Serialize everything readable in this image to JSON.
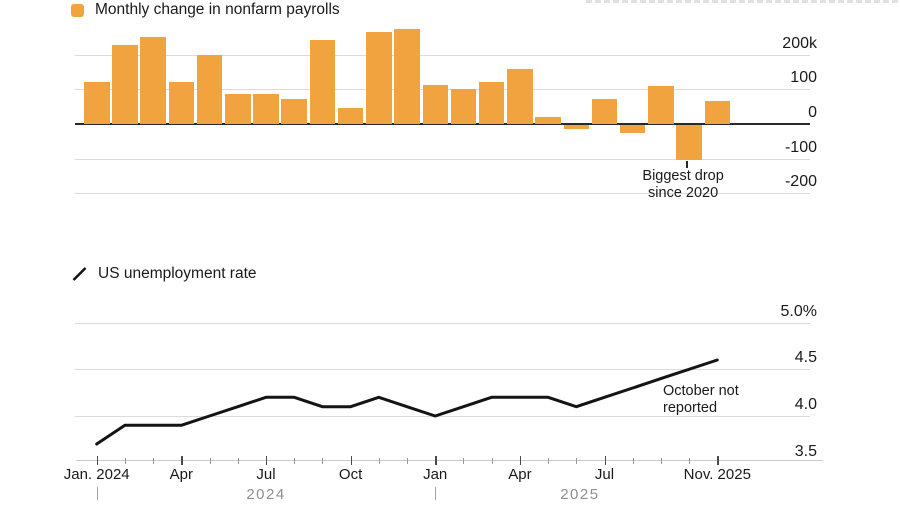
{
  "ui": {
    "payrolls_legend": "Monthly change in nonfarm payrolls",
    "unemployment_legend": "US unemployment rate",
    "payrolls_annotation_line1": "Biggest drop",
    "payrolls_annotation_line2": "since 2020",
    "unemployment_annotation_line1": "October not",
    "unemployment_annotation_line2": "reported"
  },
  "colors": {
    "bar": "#F0A33E",
    "line": "#141414",
    "grid": "#DBDBDB",
    "zero_axis": "#26292D",
    "text": "#1A1A1A",
    "muted_text": "#8F8F8F"
  },
  "payrolls_axis": {
    "ticks": [
      {
        "label": "200k",
        "value": 200
      },
      {
        "label": "100",
        "value": 100
      },
      {
        "label": "0",
        "value": 0
      },
      {
        "label": "-100",
        "value": -100
      },
      {
        "label": "-200",
        "value": -200
      }
    ]
  },
  "unemployment_axis": {
    "ticks": [
      {
        "label": "5.0%",
        "value": 5.0
      },
      {
        "label": "4.5",
        "value": 4.5
      },
      {
        "label": "4.0",
        "value": 4.0
      },
      {
        "label": "3.5",
        "value": 3.5
      }
    ]
  },
  "x_axis": {
    "tick_labels": [
      {
        "label": "Jan. 2024",
        "month_index": 0,
        "clipped_left": true
      },
      {
        "label": "Apr",
        "month_index": 3
      },
      {
        "label": "Jul",
        "month_index": 6
      },
      {
        "label": "Oct",
        "month_index": 9
      },
      {
        "label": "Jan",
        "month_index": 12
      },
      {
        "label": "Apr",
        "month_index": 15
      },
      {
        "label": "Jul",
        "month_index": 18
      },
      {
        "label": "Nov. 2025",
        "month_index": 22
      }
    ],
    "year_labels": [
      {
        "label": "2024",
        "center_month": 6.0
      },
      {
        "label": "2025",
        "center_month": 17.13
      }
    ],
    "year_tick_months": [
      0,
      12
    ]
  },
  "chart_data": [
    {
      "type": "bar",
      "title": "Monthly change in nonfarm payrolls",
      "unit": "thousands of jobs",
      "categories": [
        "Jan. 2024",
        "Feb. 2024",
        "Mar. 2024",
        "Apr. 2024",
        "May 2024",
        "Jun. 2024",
        "Jul. 2024",
        "Aug. 2024",
        "Sep. 2024",
        "Oct. 2024",
        "Nov. 2024",
        "Dec. 2024",
        "Jan. 2025",
        "Feb. 2025",
        "Mar. 2025",
        "Apr. 2025",
        "May 2025",
        "Jun. 2025",
        "Jul. 2025",
        "Aug. 2025",
        "Sep. 2025",
        "Oct. 2025",
        "Nov. 2025"
      ],
      "values": [
        120,
        228,
        250,
        120,
        198,
        88,
        88,
        72,
        242,
        46,
        264,
        275,
        113,
        102,
        122,
        158,
        20,
        -15,
        73,
        -27,
        110,
        -105,
        66
      ],
      "ylim": [
        -250,
        290
      ],
      "ytick_labels": [
        "200k",
        "100",
        "0",
        "-100",
        "-200"
      ],
      "grid": true,
      "legend_position": "top-left",
      "annotation": {
        "text": "Biggest drop since 2020",
        "target_category": "Oct. 2025",
        "target_value": -105
      }
    },
    {
      "type": "line",
      "title": "US unemployment rate",
      "unit": "%",
      "categories": [
        "Jan. 2024",
        "Feb. 2024",
        "Mar. 2024",
        "Apr. 2024",
        "May 2024",
        "Jun. 2024",
        "Jul. 2024",
        "Aug. 2024",
        "Sep. 2024",
        "Oct. 2024",
        "Nov. 2024",
        "Dec. 2024",
        "Jan. 2025",
        "Feb. 2025",
        "Mar. 2025",
        "Apr. 2025",
        "May 2025",
        "Jun. 2025",
        "Jul. 2025",
        "Aug. 2025",
        "Sep. 2025",
        "Oct. 2025",
        "Nov. 2025"
      ],
      "values": [
        3.7,
        3.9,
        3.9,
        3.9,
        4.0,
        4.1,
        4.2,
        4.2,
        4.1,
        4.1,
        4.2,
        4.1,
        4.0,
        4.1,
        4.2,
        4.2,
        4.2,
        4.1,
        4.2,
        4.3,
        4.4,
        null,
        4.6
      ],
      "ylim": [
        3.5,
        5.0
      ],
      "ytick_labels": [
        "5.0%",
        "4.5",
        "4.0",
        "3.5"
      ],
      "grid": true,
      "legend_position": "top-left",
      "annotation": {
        "text": "October not reported",
        "target_category": "Oct. 2025"
      }
    }
  ]
}
